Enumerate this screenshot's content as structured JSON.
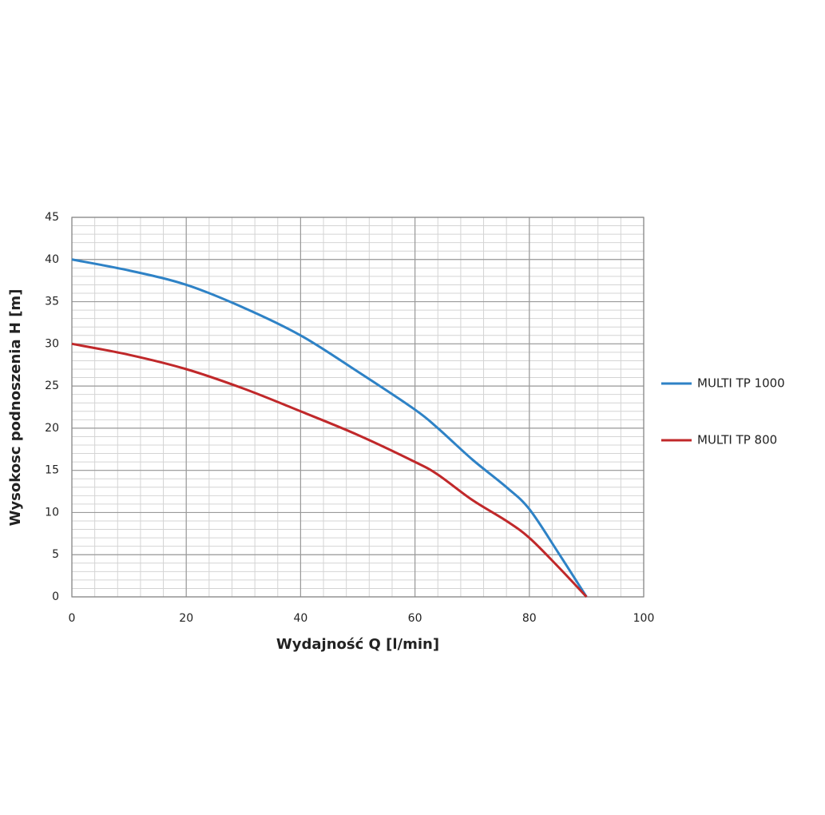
{
  "chart_data": {
    "type": "line",
    "x_label": "Wydajność Q [l/min]",
    "y_label": "Wysokosc podnoszenia H [m]",
    "xlim": [
      0,
      100
    ],
    "xticks": [
      0,
      20,
      40,
      60,
      80,
      100
    ],
    "ylim": [
      0,
      45
    ],
    "yticks": [
      0,
      5,
      10,
      15,
      20,
      25,
      30,
      35,
      40,
      45
    ],
    "grid": true,
    "minor_grid": {
      "x": 4,
      "y": 1
    },
    "legend": "right",
    "x": [
      0,
      10,
      20,
      30,
      40,
      50,
      60,
      64,
      70,
      76,
      80,
      85,
      90
    ],
    "series": [
      {
        "name": "MULTI TP 1000",
        "color": "#2e82c6",
        "values": [
          40,
          38.7,
          37,
          34.3,
          31,
          26.7,
          22.2,
          20,
          16.3,
          13,
          10.4,
          5.3,
          0
        ]
      },
      {
        "name": "MULTI TP 800",
        "color": "#c0282a",
        "values": [
          30,
          28.7,
          27,
          24.7,
          22,
          19.2,
          16,
          14.5,
          11.5,
          9,
          7,
          3.6,
          0
        ]
      }
    ]
  }
}
